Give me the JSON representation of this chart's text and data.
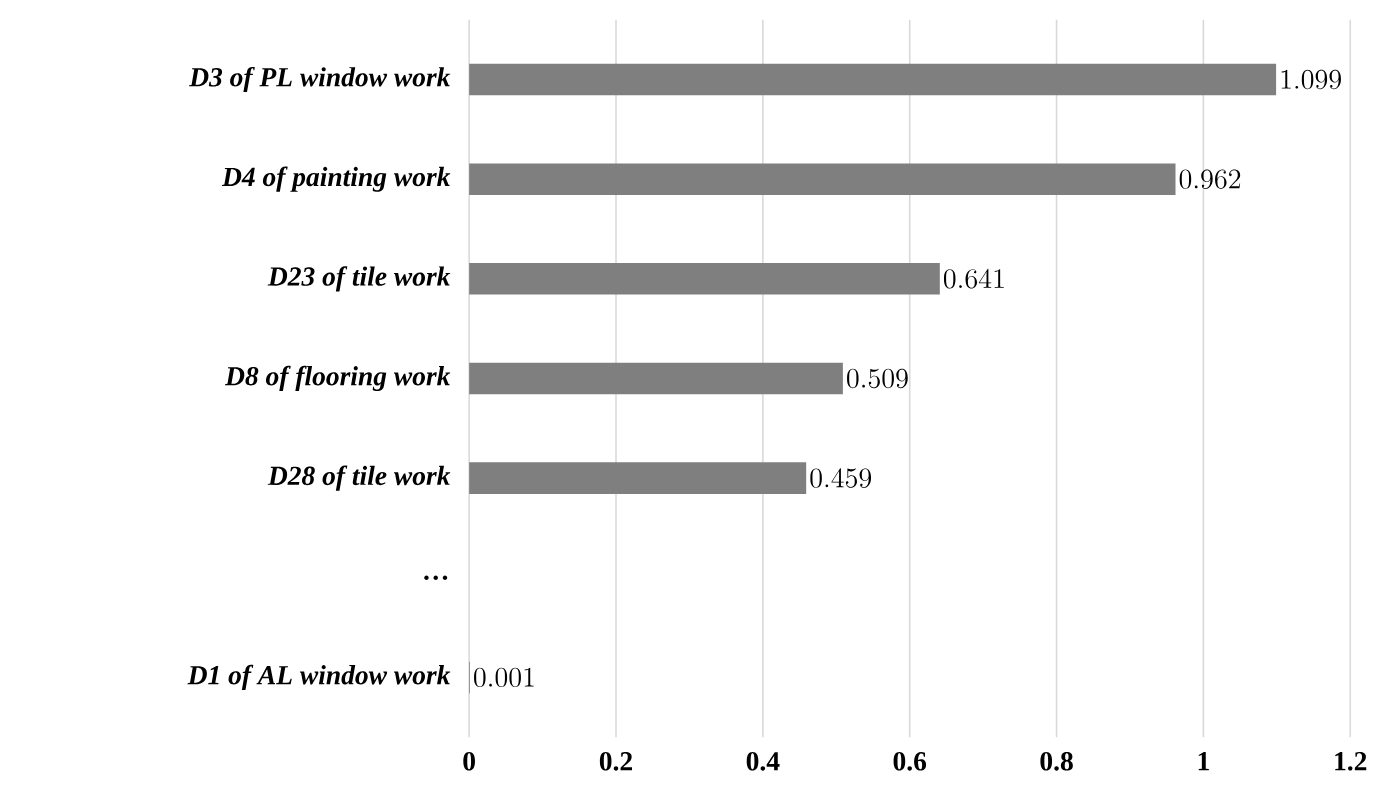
{
  "chart_data": {
    "type": "bar",
    "orientation": "horizontal",
    "categories": [
      "D3 of PL window work",
      "D4 of painting work",
      "D23 of tile work",
      "D8 of flooring work",
      "D28 of tile work",
      "…",
      "D1 of AL window work"
    ],
    "values": [
      1.099,
      0.962,
      0.641,
      0.509,
      0.459,
      null,
      0.001
    ],
    "color": "#7f7f7f",
    "xlim": [
      0,
      1.2
    ],
    "xticks": [
      0,
      0.2,
      0.4,
      0.6,
      0.8,
      1,
      1.2
    ],
    "grid": "x",
    "data_labels": true
  }
}
